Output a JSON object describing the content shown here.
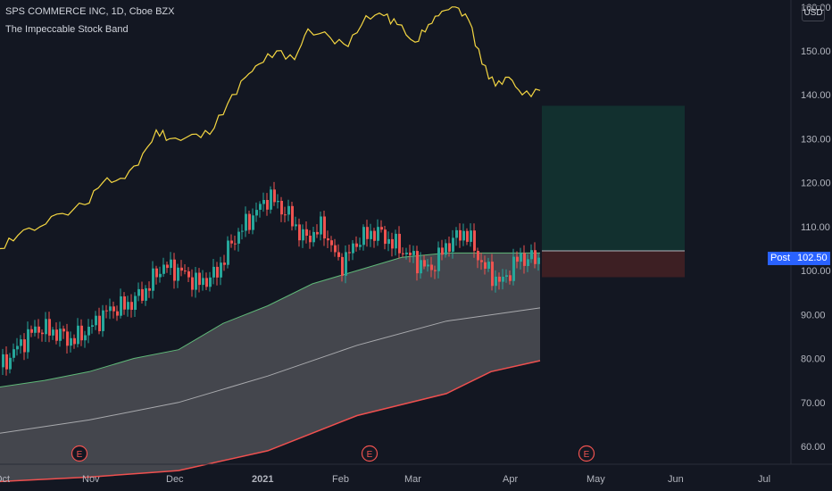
{
  "header": {
    "title": "SPS COMMERCE INC, 1D, Cboe BZX",
    "indicator": "The Impeccable Stock Band"
  },
  "currency_label": "USD",
  "post_tag": {
    "label": "Post",
    "value": "102.50"
  },
  "earnings_marker": "E",
  "colors": {
    "background": "#131722",
    "yellow_line": "#f5d742",
    "band_fill": "#4a4b52",
    "band_upper": "#5fb878",
    "band_lower": "#f0504f",
    "mid_line": "#a8a9ad",
    "candle_up": "#26a69a",
    "candle_down": "#ef5350",
    "target_zone": "#12302f",
    "stop_zone": "#3d1f23"
  },
  "chart_data": {
    "type": "line",
    "ylim": [
      55,
      160
    ],
    "y_ticks": [
      "160.00",
      "150.00",
      "140.00",
      "130.00",
      "120.00",
      "110.00",
      "100.00",
      "90.00",
      "80.00",
      "70.00",
      "60.00"
    ],
    "x_ticks": [
      "Oct",
      "Nov",
      "Dec",
      "2021",
      "Feb",
      "Mar",
      "Apr",
      "May",
      "Jun",
      "Jul"
    ],
    "series": [
      {
        "role": "comparison",
        "values": [
          [
            0,
            105
          ],
          [
            20,
            108
          ],
          [
            45,
            110
          ],
          [
            70,
            113
          ],
          [
            95,
            115
          ],
          [
            115,
            120
          ],
          [
            135,
            121
          ],
          [
            155,
            124
          ],
          [
            175,
            132
          ],
          [
            190,
            130
          ],
          [
            215,
            131
          ],
          [
            235,
            131
          ],
          [
            255,
            138
          ],
          [
            275,
            144
          ],
          [
            290,
            147
          ],
          [
            310,
            150
          ],
          [
            330,
            148
          ],
          [
            345,
            155
          ],
          [
            370,
            153
          ],
          [
            390,
            151
          ],
          [
            410,
            158
          ],
          [
            430,
            158
          ],
          [
            445,
            156
          ],
          [
            465,
            152
          ],
          [
            480,
            156
          ],
          [
            495,
            159
          ],
          [
            510,
            160
          ],
          [
            525,
            157
          ],
          [
            540,
            147
          ],
          [
            555,
            142
          ],
          [
            570,
            144
          ],
          [
            585,
            140
          ],
          [
            605,
            141
          ]
        ]
      },
      {
        "role": "band_upper",
        "values": [
          [
            0,
            73.5
          ],
          [
            50,
            75
          ],
          [
            100,
            77
          ],
          [
            150,
            80
          ],
          [
            200,
            82
          ],
          [
            250,
            88
          ],
          [
            300,
            92
          ],
          [
            350,
            97
          ],
          [
            400,
            100
          ],
          [
            450,
            103
          ],
          [
            500,
            104
          ],
          [
            550,
            104
          ],
          [
            605,
            104
          ]
        ]
      },
      {
        "role": "band_mid",
        "values": [
          [
            0,
            63
          ],
          [
            100,
            66
          ],
          [
            200,
            70
          ],
          [
            300,
            76
          ],
          [
            400,
            83
          ],
          [
            500,
            88.5
          ],
          [
            605,
            91.5
          ]
        ]
      },
      {
        "role": "band_lower",
        "values": [
          [
            0,
            52
          ],
          [
            100,
            53
          ],
          [
            200,
            54.5
          ],
          [
            300,
            59
          ],
          [
            400,
            67
          ],
          [
            500,
            72
          ],
          [
            550,
            77
          ],
          [
            605,
            79.5
          ]
        ]
      },
      {
        "role": "price",
        "values": [
          [
            0,
            78
          ],
          [
            20,
            83
          ],
          [
            40,
            87
          ],
          [
            60,
            86
          ],
          [
            80,
            84
          ],
          [
            100,
            87
          ],
          [
            120,
            91
          ],
          [
            140,
            92
          ],
          [
            160,
            95
          ],
          [
            180,
            101
          ],
          [
            200,
            100
          ],
          [
            220,
            97
          ],
          [
            240,
            99
          ],
          [
            260,
            107
          ],
          [
            280,
            112
          ],
          [
            300,
            117
          ],
          [
            320,
            113
          ],
          [
            340,
            107
          ],
          [
            360,
            110
          ],
          [
            380,
            101
          ],
          [
            400,
            107
          ],
          [
            420,
            109
          ],
          [
            440,
            106
          ],
          [
            460,
            103
          ],
          [
            480,
            100
          ],
          [
            500,
            106
          ],
          [
            520,
            109
          ],
          [
            540,
            101
          ],
          [
            560,
            97
          ],
          [
            580,
            103
          ],
          [
            600,
            102.5
          ]
        ]
      }
    ],
    "position": {
      "entry": 104.5,
      "target": 137.5,
      "stop": 98.5
    },
    "earnings_dates": [
      "Nov",
      "Feb",
      "May"
    ]
  }
}
